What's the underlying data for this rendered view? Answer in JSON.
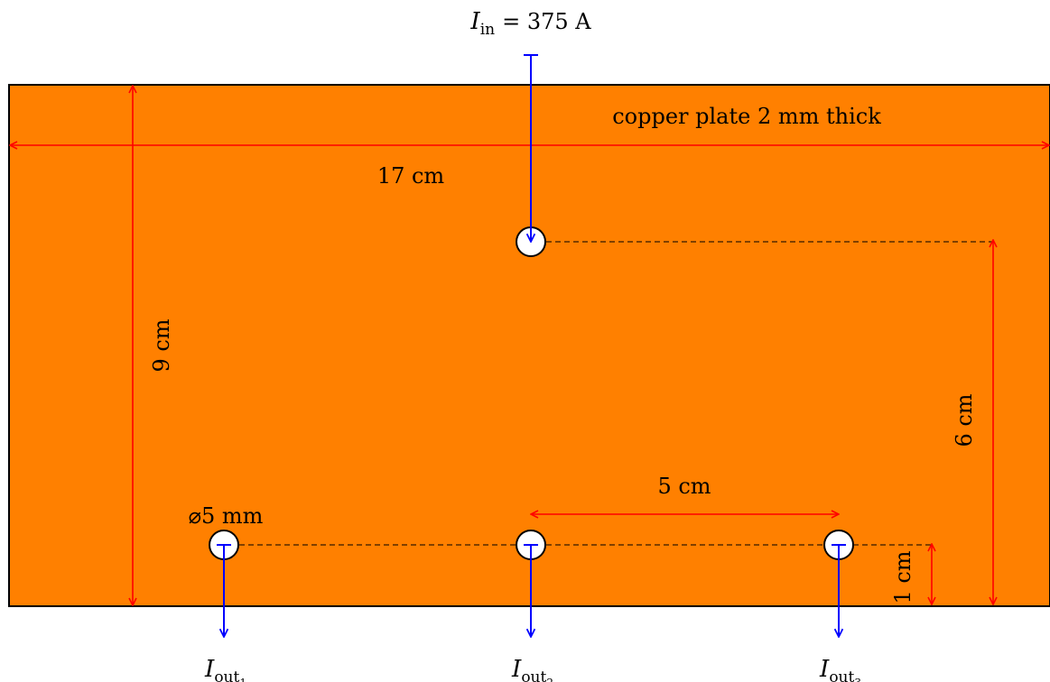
{
  "input_current": {
    "symbol": "I",
    "subscript": "in",
    "value": "= 375 A"
  },
  "plate_label": "copper plate 2 mm thick",
  "dimensions": {
    "width": "17 cm",
    "height": "9 cm",
    "hole_spacing": "5 cm",
    "input_offset": "6 cm",
    "output_offset": "1 cm",
    "hole_diameter": "⌀5 mm"
  },
  "outputs": [
    {
      "symbol": "I",
      "subscript": "out",
      "index": "1"
    },
    {
      "symbol": "I",
      "subscript": "out",
      "index": "2"
    },
    {
      "symbol": "I",
      "subscript": "out",
      "index": "3"
    }
  ],
  "colors": {
    "plate": "#ff8000",
    "dimension": "#ff0000",
    "current": "#0000ff",
    "outline": "#000000"
  }
}
